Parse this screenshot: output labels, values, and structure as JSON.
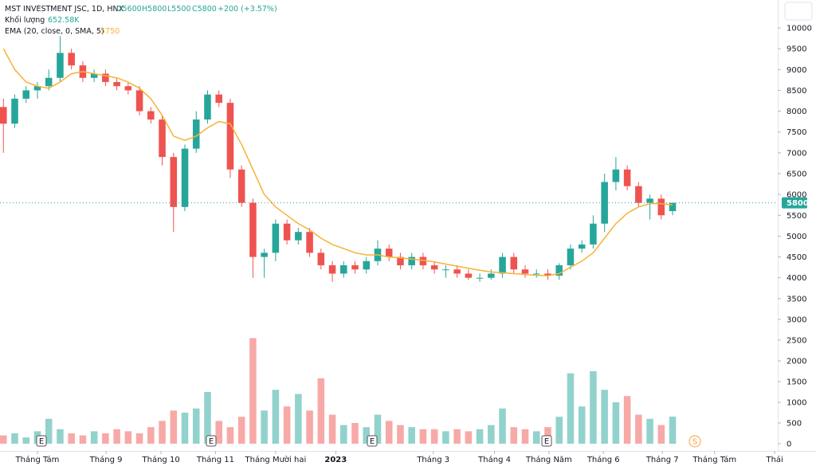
{
  "header": {
    "symbol": "MST INVESTMENT JSC, 1D, HNX",
    "open": "O5600",
    "high": "H5800",
    "low": "L5500",
    "close": "C5800",
    "change": "+200 (+3.57%)",
    "volume_name": "Khối lượng",
    "volume_value": "652.58K",
    "ema_name": "EMA (20, close, 0, SMA, 5)",
    "ema_value": "5750"
  },
  "events": [
    "E",
    "E",
    "E",
    "E",
    "S"
  ],
  "chart_data": {
    "type": "candlestick",
    "up_color": "#26a69a",
    "down_color": "#ef5350",
    "ema_color": "#f7b236",
    "xlim": [
      -0.3,
      68.2
    ],
    "xticks": [
      {
        "value": 3.0,
        "label": "Tháng Tám"
      },
      {
        "value": 9.05,
        "label": "Tháng 9"
      },
      {
        "value": 13.9,
        "label": "Tháng 10"
      },
      {
        "value": 18.7,
        "label": "Tháng 11"
      },
      {
        "value": 24.0,
        "label": "Tháng Mười hai"
      },
      {
        "value": 29.3,
        "label": "2023"
      },
      {
        "value": 37.9,
        "label": "Tháng 3"
      },
      {
        "value": 43.3,
        "label": "Tháng 4"
      },
      {
        "value": 48.1,
        "label": "Tháng Năm"
      },
      {
        "value": 52.9,
        "label": "Tháng 6"
      },
      {
        "value": 58.1,
        "label": "Tháng 7"
      },
      {
        "value": 62.7,
        "label": "Tháng Tám"
      },
      {
        "value": 68.0,
        "label": "Thái"
      }
    ],
    "ylim": [
      3000,
      10000
    ],
    "yticks": [
      3000,
      3500,
      4000,
      4500,
      5000,
      5500,
      6000,
      6500,
      7000,
      7500,
      8000,
      8500,
      9000,
      9500,
      10000
    ],
    "y2lim": [
      0,
      2500
    ],
    "y2ticks": [
      0,
      500,
      1000,
      1500,
      2000,
      2500
    ],
    "open": [
      8100,
      7700,
      8300,
      8500,
      8600,
      8800,
      9400,
      9100,
      8800,
      8900,
      8700,
      8600,
      8500,
      8000,
      7800,
      6900,
      5700,
      7100,
      7800,
      8400,
      8200,
      6600,
      5800,
      4500,
      4600,
      5300,
      4900,
      5100,
      4600,
      4300,
      4100,
      4300,
      4200,
      4400,
      4700,
      4500,
      4300,
      4500,
      4300,
      4200,
      4200,
      4100,
      4000,
      4000,
      4100,
      4500,
      4200,
      4100,
      4100,
      4050,
      4300,
      4700,
      4800,
      5300,
      6300,
      6600,
      6200,
      5800,
      5900,
      5600
    ],
    "high": [
      8300,
      8400,
      8600,
      8700,
      9000,
      9800,
      9500,
      9200,
      9000,
      9000,
      8800,
      8700,
      8600,
      8100,
      7900,
      7000,
      7200,
      8000,
      8500,
      8500,
      8300,
      6700,
      5900,
      4700,
      5400,
      5400,
      5200,
      5200,
      4700,
      4400,
      4400,
      4400,
      4500,
      4900,
      4800,
      4600,
      4600,
      4600,
      4400,
      4300,
      4300,
      4200,
      4100,
      4200,
      4600,
      4600,
      4300,
      4200,
      4200,
      4350,
      4800,
      4900,
      5500,
      6500,
      6900,
      6700,
      6300,
      6000,
      6000,
      5800
    ],
    "low": [
      7000,
      7600,
      8200,
      8300,
      8500,
      8700,
      9000,
      8700,
      8700,
      8600,
      8500,
      8400,
      7900,
      7700,
      6700,
      5100,
      5600,
      7000,
      7700,
      8100,
      6400,
      5700,
      4000,
      4000,
      4400,
      4800,
      4800,
      4500,
      4200,
      3900,
      4000,
      4100,
      4100,
      4300,
      4400,
      4200,
      4200,
      4200,
      4100,
      4000,
      4000,
      3950,
      3900,
      3950,
      4000,
      4100,
      4000,
      4000,
      3950,
      3950,
      4200,
      4600,
      4700,
      5100,
      6100,
      6100,
      5700,
      5400,
      5400,
      5500
    ],
    "close": [
      7700,
      8300,
      8500,
      8600,
      8800,
      9400,
      9100,
      8800,
      8900,
      8700,
      8600,
      8500,
      8000,
      7800,
      6900,
      5700,
      7100,
      7800,
      8400,
      8200,
      6600,
      5800,
      4500,
      4600,
      5300,
      4900,
      5100,
      4600,
      4300,
      4100,
      4300,
      4200,
      4400,
      4700,
      4500,
      4300,
      4500,
      4300,
      4200,
      4200,
      4100,
      4000,
      4000,
      4100,
      4500,
      4200,
      4100,
      4100,
      4050,
      4300,
      4700,
      4800,
      5300,
      6300,
      6600,
      6200,
      5800,
      5900,
      5500,
      5800
    ],
    "volume": [
      200,
      250,
      150,
      300,
      600,
      350,
      250,
      200,
      300,
      250,
      350,
      300,
      250,
      400,
      550,
      800,
      750,
      850,
      1250,
      550,
      400,
      650,
      2550,
      800,
      1300,
      900,
      1200,
      800,
      1580,
      700,
      450,
      500,
      400,
      700,
      550,
      450,
      400,
      350,
      350,
      300,
      350,
      300,
      350,
      450,
      850,
      400,
      350,
      300,
      400,
      650,
      1700,
      900,
      1750,
      1300,
      1000,
      1150,
      700,
      600,
      450,
      652.58
    ],
    "ema": [
      9500,
      9000,
      8700,
      8600,
      8550,
      8700,
      8900,
      8950,
      8900,
      8850,
      8800,
      8700,
      8550,
      8300,
      7900,
      7400,
      7300,
      7400,
      7600,
      7750,
      7700,
      7200,
      6600,
      6000,
      5700,
      5500,
      5300,
      5150,
      4950,
      4800,
      4700,
      4600,
      4550,
      4550,
      4500,
      4480,
      4450,
      4420,
      4380,
      4330,
      4280,
      4230,
      4180,
      4140,
      4120,
      4100,
      4080,
      4060,
      4050,
      4100,
      4250,
      4400,
      4600,
      4950,
      5300,
      5550,
      5700,
      5780,
      5780,
      5750
    ]
  }
}
